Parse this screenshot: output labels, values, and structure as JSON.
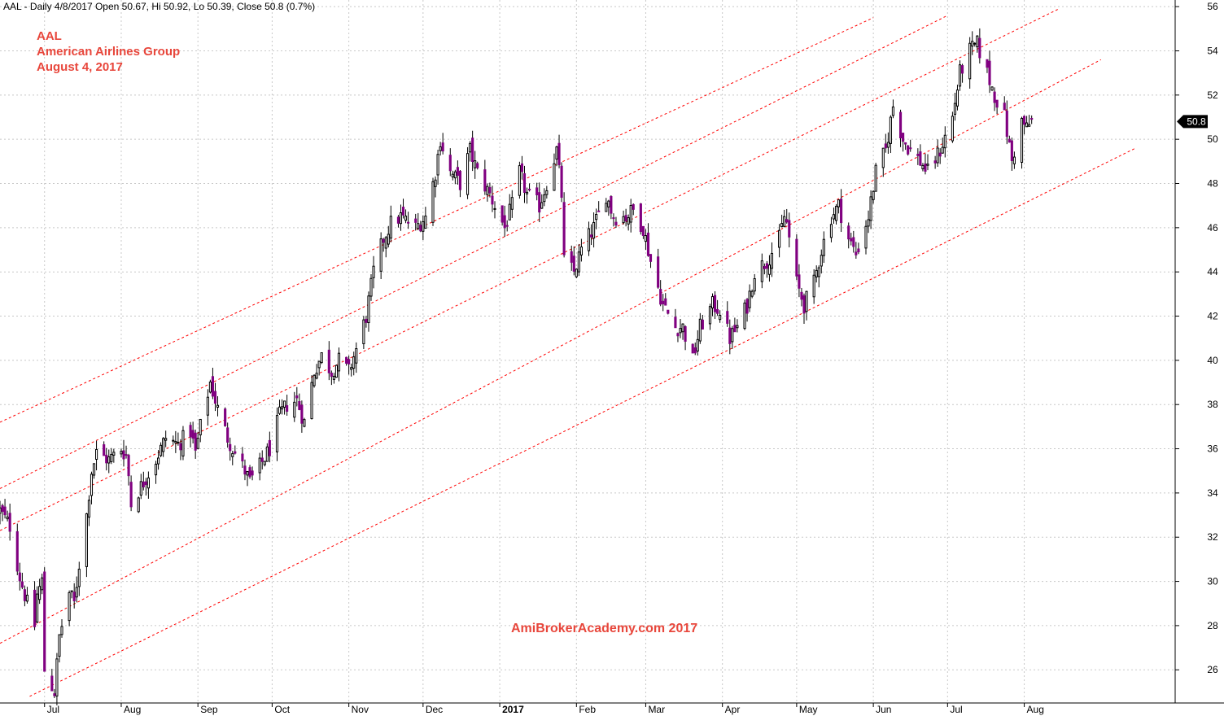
{
  "header": {
    "info_line": "AAL - Daily 4/8/2017 Open 50.67, Hi 50.92, Lo 50.39, Close 50.8 (0.7%)"
  },
  "annotations": {
    "title_lines": [
      "AAL",
      "American Airlines Group",
      "August 4, 2017"
    ],
    "watermark": "AmiBrokerAcademy.com  2017",
    "last_price_label": "50.8"
  },
  "colors": {
    "down_candle": "#800080",
    "up_candle": "#ffffff",
    "candle_outline": "#000000",
    "channel_line": "#ff0000",
    "title_text": "#e8473c",
    "grid": "#c8c8c8"
  },
  "chart_data": {
    "type": "candlestick",
    "title": "AAL",
    "subtitle": "American Airlines Group",
    "date_label": "August 4, 2017",
    "ylim": [
      24.5,
      56.3
    ],
    "y_ticks": [
      26,
      28,
      30,
      32,
      34,
      36,
      38,
      40,
      42,
      44,
      46,
      48,
      50,
      52,
      54,
      56
    ],
    "grid": true,
    "x_range": [
      "2016-06-13",
      "2017-10-01"
    ],
    "x_ticks": [
      {
        "label": "Jul",
        "date": "2016-07-01"
      },
      {
        "label": "Aug",
        "date": "2016-08-01"
      },
      {
        "label": "Sep",
        "date": "2016-09-01"
      },
      {
        "label": "Oct",
        "date": "2016-10-01"
      },
      {
        "label": "Nov",
        "date": "2016-11-01"
      },
      {
        "label": "Dec",
        "date": "2016-12-01"
      },
      {
        "label": "2017",
        "date": "2017-01-01",
        "bold": true
      },
      {
        "label": "Feb",
        "date": "2017-02-01"
      },
      {
        "label": "Mar",
        "date": "2017-03-01"
      },
      {
        "label": "Apr",
        "date": "2017-04-01"
      },
      {
        "label": "May",
        "date": "2017-05-01"
      },
      {
        "label": "Jun",
        "date": "2017-06-01"
      },
      {
        "label": "Jul",
        "date": "2017-07-01"
      },
      {
        "label": "Aug",
        "date": "2017-08-01"
      }
    ],
    "series": [
      {
        "name": "AAL",
        "price_path": [
          [
            "2016-06-13",
            33.2
          ],
          [
            "2016-06-17",
            32.5
          ],
          [
            "2016-06-21",
            30.2
          ],
          [
            "2016-06-24",
            29.0
          ],
          [
            "2016-06-27",
            28.0
          ],
          [
            "2016-06-28",
            29.4
          ],
          [
            "2016-06-30",
            30.0
          ],
          [
            "2016-07-01",
            26.0
          ],
          [
            "2016-07-05",
            25.0
          ],
          [
            "2016-07-07",
            27.5
          ],
          [
            "2016-07-11",
            29.5
          ],
          [
            "2016-07-13",
            29.0
          ],
          [
            "2016-07-15",
            30.8
          ],
          [
            "2016-07-18",
            33.0
          ],
          [
            "2016-07-20",
            35.0
          ],
          [
            "2016-07-22",
            35.8
          ],
          [
            "2016-07-27",
            35.5
          ],
          [
            "2016-08-01",
            36.0
          ],
          [
            "2016-08-03",
            35.7
          ],
          [
            "2016-08-04",
            34.8
          ],
          [
            "2016-08-05",
            33.5
          ],
          [
            "2016-08-10",
            34.5
          ],
          [
            "2016-08-15",
            35.5
          ],
          [
            "2016-08-19",
            36.5
          ],
          [
            "2016-08-24",
            36.2
          ],
          [
            "2016-08-29",
            36.8
          ],
          [
            "2016-08-31",
            35.8
          ],
          [
            "2016-09-02",
            37.0
          ],
          [
            "2016-09-06",
            39.0
          ],
          [
            "2016-09-09",
            37.8
          ],
          [
            "2016-09-13",
            36.5
          ],
          [
            "2016-09-16",
            35.8
          ],
          [
            "2016-09-20",
            35.0
          ],
          [
            "2016-09-22",
            34.5
          ],
          [
            "2016-09-26",
            35.2
          ],
          [
            "2016-09-30",
            36.0
          ],
          [
            "2016-10-04",
            37.5
          ],
          [
            "2016-10-07",
            38.0
          ],
          [
            "2016-10-11",
            38.2
          ],
          [
            "2016-10-14",
            37.2
          ],
          [
            "2016-10-18",
            39.5
          ],
          [
            "2016-10-21",
            40.2
          ],
          [
            "2016-10-25",
            39.5
          ],
          [
            "2016-10-28",
            40.0
          ],
          [
            "2016-11-01",
            39.5
          ],
          [
            "2016-11-04",
            40.5
          ],
          [
            "2016-11-08",
            42.0
          ],
          [
            "2016-11-11",
            44.0
          ],
          [
            "2016-11-15",
            45.5
          ],
          [
            "2016-11-18",
            46.2
          ],
          [
            "2016-11-22",
            46.5
          ],
          [
            "2016-11-28",
            46.0
          ],
          [
            "2016-12-02",
            46.5
          ],
          [
            "2016-12-06",
            48.5
          ],
          [
            "2016-12-08",
            50.0
          ],
          [
            "2016-12-12",
            48.5
          ],
          [
            "2016-12-16",
            48.0
          ],
          [
            "2016-12-20",
            49.5
          ],
          [
            "2016-12-23",
            48.5
          ],
          [
            "2016-12-28",
            47.5
          ],
          [
            "2017-01-03",
            46.0
          ],
          [
            "2017-01-06",
            47.0
          ],
          [
            "2017-01-09",
            48.5
          ],
          [
            "2017-01-12",
            47.5
          ],
          [
            "2017-01-17",
            47.0
          ],
          [
            "2017-01-20",
            48.0
          ],
          [
            "2017-01-24",
            49.5
          ],
          [
            "2017-01-26",
            47.5
          ],
          [
            "2017-01-27",
            44.5
          ],
          [
            "2017-01-31",
            44.0
          ],
          [
            "2017-02-03",
            45.0
          ],
          [
            "2017-02-08",
            46.0
          ],
          [
            "2017-02-13",
            47.5
          ],
          [
            "2017-02-16",
            46.5
          ],
          [
            "2017-02-21",
            46.5
          ],
          [
            "2017-02-24",
            46.8
          ],
          [
            "2017-02-28",
            46.0
          ],
          [
            "2017-03-03",
            44.5
          ],
          [
            "2017-03-08",
            42.5
          ],
          [
            "2017-03-13",
            41.5
          ],
          [
            "2017-03-16",
            41.5
          ],
          [
            "2017-03-20",
            40.0
          ],
          [
            "2017-03-23",
            41.5
          ],
          [
            "2017-03-28",
            42.5
          ],
          [
            "2017-03-31",
            42.3
          ],
          [
            "2017-04-04",
            41.0
          ],
          [
            "2017-04-07",
            41.5
          ],
          [
            "2017-04-11",
            42.5
          ],
          [
            "2017-04-14",
            44.0
          ],
          [
            "2017-04-19",
            44.5
          ],
          [
            "2017-04-24",
            45.5
          ],
          [
            "2017-04-26",
            46.5
          ],
          [
            "2017-04-27",
            46.2
          ],
          [
            "2017-05-01",
            43.5
          ],
          [
            "2017-05-04",
            42.5
          ],
          [
            "2017-05-08",
            43.5
          ],
          [
            "2017-05-11",
            45.0
          ],
          [
            "2017-05-15",
            46.5
          ],
          [
            "2017-05-18",
            47.0
          ],
          [
            "2017-05-22",
            45.5
          ],
          [
            "2017-05-25",
            44.8
          ],
          [
            "2017-05-30",
            46.5
          ],
          [
            "2017-06-02",
            48.5
          ],
          [
            "2017-06-06",
            49.5
          ],
          [
            "2017-06-09",
            51.5
          ],
          [
            "2017-06-13",
            50.0
          ],
          [
            "2017-06-16",
            49.5
          ],
          [
            "2017-06-20",
            49.0
          ],
          [
            "2017-06-23",
            48.5
          ],
          [
            "2017-06-28",
            49.5
          ],
          [
            "2017-07-03",
            51.0
          ],
          [
            "2017-07-06",
            53.0
          ],
          [
            "2017-07-10",
            54.0
          ],
          [
            "2017-07-13",
            54.3
          ],
          [
            "2017-07-17",
            53.0
          ],
          [
            "2017-07-20",
            52.0
          ],
          [
            "2017-07-24",
            51.0
          ],
          [
            "2017-07-27",
            49.0
          ],
          [
            "2017-07-31",
            50.8
          ],
          [
            "2017-08-02",
            50.5
          ],
          [
            "2017-08-04",
            50.8
          ]
        ]
      }
    ],
    "channel_lines": [
      {
        "from": [
          "2016-06-13",
          37.2
        ],
        "to": [
          "2017-06-01",
          55.5
        ]
      },
      {
        "from": [
          "2016-06-13",
          34.2
        ],
        "to": [
          "2017-07-01",
          55.6
        ]
      },
      {
        "from": [
          "2016-06-13",
          32.3
        ],
        "to": [
          "2017-08-15",
          55.9
        ]
      },
      {
        "from": [
          "2016-06-13",
          27.2
        ],
        "to": [
          "2017-09-01",
          53.6
        ]
      },
      {
        "from": [
          "2016-06-25",
          24.8
        ],
        "to": [
          "2017-09-15",
          49.6
        ]
      }
    ],
    "last_close": 50.8
  }
}
